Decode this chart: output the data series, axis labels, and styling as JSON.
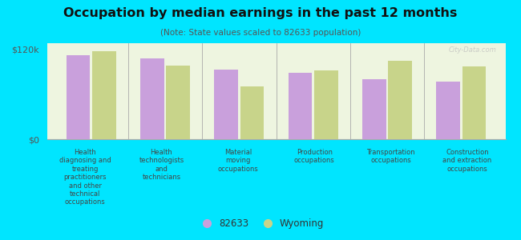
{
  "title": "Occupation by median earnings in the past 12 months",
  "subtitle": "(Note: State values scaled to 82633 population)",
  "categories": [
    "Health\ndiagnosing and\ntreating\npractitioners\nand other\ntechnical\noccupations",
    "Health\ntechnologists\nand\ntechnicians",
    "Material\nmoving\noccupations",
    "Production\noccupations",
    "Transportation\noccupations",
    "Construction\nand extraction\noccupations"
  ],
  "values_82633": [
    112000,
    108000,
    93000,
    88000,
    80000,
    77000
  ],
  "values_wyoming": [
    117000,
    98000,
    70000,
    92000,
    104000,
    97000
  ],
  "color_82633": "#c9a0dc",
  "color_wyoming": "#c8d48a",
  "background_chart": "#eef5e0",
  "background_outer": "#00e5ff",
  "ylabel_ticks": [
    "$0",
    "$120k"
  ],
  "ylim": [
    0,
    128000
  ],
  "yticks": [
    0,
    120000
  ],
  "legend_labels": [
    "82633",
    "Wyoming"
  ],
  "watermark": "City-Data.com"
}
